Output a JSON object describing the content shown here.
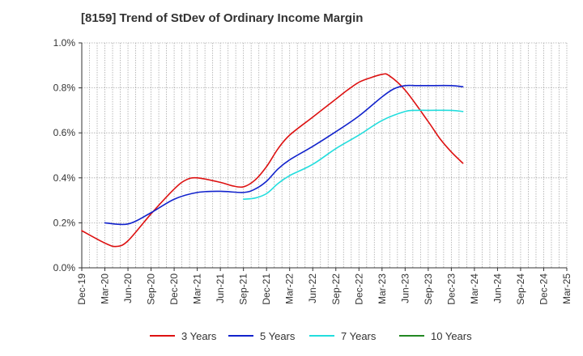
{
  "chart_data": {
    "type": "line",
    "title": "[8159]  Trend of StDev of Ordinary Income Margin",
    "xlabel": "",
    "ylabel": "",
    "x_ticks": [
      "Dec-19",
      "Mar-20",
      "Jun-20",
      "Sep-20",
      "Dec-20",
      "Mar-21",
      "Jun-21",
      "Sep-21",
      "Dec-21",
      "Mar-22",
      "Jun-22",
      "Sep-22",
      "Dec-22",
      "Mar-23",
      "Jun-23",
      "Sep-23",
      "Dec-23",
      "Mar-24",
      "Jun-24",
      "Sep-24",
      "Dec-24",
      "Mar-25"
    ],
    "y_ticks": [
      "0.0%",
      "0.2%",
      "0.4%",
      "0.6%",
      "0.8%",
      "1.0%"
    ],
    "ylim": [
      0,
      1.0
    ],
    "y_unit": "%",
    "grid": true,
    "legend_position": "bottom",
    "series": [
      {
        "name": "3 Years",
        "color": "#dd1111",
        "points": [
          [
            0,
            0.165
          ],
          [
            1,
            0.11
          ],
          [
            1.5,
            0.095
          ],
          [
            2,
            0.12
          ],
          [
            3,
            0.24
          ],
          [
            4,
            0.35
          ],
          [
            4.5,
            0.39
          ],
          [
            5,
            0.4
          ],
          [
            6,
            0.38
          ],
          [
            6.5,
            0.365
          ],
          [
            7,
            0.36
          ],
          [
            7.5,
            0.39
          ],
          [
            8,
            0.45
          ],
          [
            8.5,
            0.53
          ],
          [
            9,
            0.59
          ],
          [
            10,
            0.67
          ],
          [
            11,
            0.75
          ],
          [
            11.5,
            0.79
          ],
          [
            12,
            0.825
          ],
          [
            12.5,
            0.845
          ],
          [
            13,
            0.86
          ],
          [
            13.3,
            0.855
          ],
          [
            14,
            0.79
          ],
          [
            15,
            0.65
          ],
          [
            15.5,
            0.575
          ],
          [
            16,
            0.515
          ],
          [
            16.5,
            0.465
          ]
        ]
      },
      {
        "name": "5 Years",
        "color": "#1122cc",
        "points": [
          [
            1,
            0.2
          ],
          [
            2,
            0.195
          ],
          [
            3,
            0.245
          ],
          [
            4,
            0.305
          ],
          [
            5,
            0.335
          ],
          [
            6,
            0.34
          ],
          [
            7,
            0.335
          ],
          [
            7.5,
            0.35
          ],
          [
            8,
            0.385
          ],
          [
            8.5,
            0.44
          ],
          [
            9,
            0.48
          ],
          [
            10,
            0.54
          ],
          [
            11,
            0.605
          ],
          [
            12,
            0.675
          ],
          [
            13,
            0.76
          ],
          [
            13.5,
            0.795
          ],
          [
            14,
            0.81
          ],
          [
            14.5,
            0.81
          ],
          [
            15,
            0.81
          ],
          [
            16,
            0.81
          ],
          [
            16.5,
            0.805
          ]
        ]
      },
      {
        "name": "7 Years",
        "color": "#22dddd",
        "points": [
          [
            7,
            0.305
          ],
          [
            7.5,
            0.31
          ],
          [
            8,
            0.33
          ],
          [
            8.5,
            0.375
          ],
          [
            9,
            0.41
          ],
          [
            10,
            0.46
          ],
          [
            11,
            0.53
          ],
          [
            12,
            0.59
          ],
          [
            13,
            0.655
          ],
          [
            14,
            0.695
          ],
          [
            14.5,
            0.7
          ],
          [
            15,
            0.7
          ],
          [
            16,
            0.7
          ],
          [
            16.5,
            0.695
          ]
        ]
      },
      {
        "name": "10 Years",
        "color": "#228822",
        "points": []
      }
    ]
  }
}
